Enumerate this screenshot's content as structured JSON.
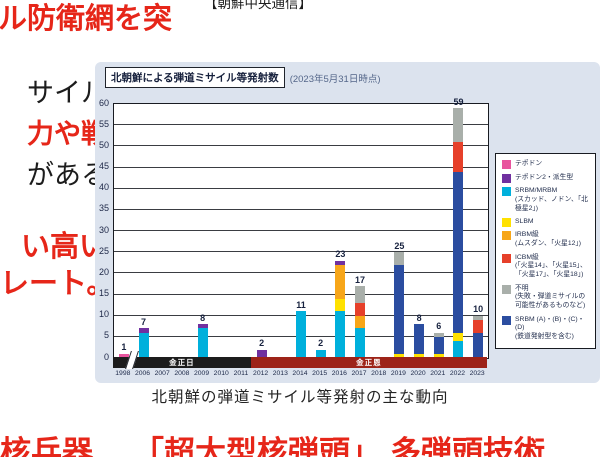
{
  "colors": {
    "headline_red": "#e62619",
    "panel_bg": "#dce3ee",
    "era_kim_jong_il": "#1c1c1c",
    "era_kim_jong_un": "#9d2318"
  },
  "page": {
    "headline_top": "ル防衛網を突",
    "credit": "【朝鮮中央通信】",
    "left_fragments": [
      "サイル",
      "力や戦",
      "がある",
      "い高い",
      "レート。"
    ],
    "left_fragment_colors": [
      "black",
      "red",
      "black",
      "red",
      "red"
    ],
    "caption": "北朝鮮の弾道ミサイル等発射の主な動向",
    "headline_bottom": [
      "核兵器",
      "「超大型核弾頭」",
      "多弾頭技術"
    ]
  },
  "chart_data": {
    "type": "bar",
    "stacked": true,
    "title": "北朝鮮による弾道ミサイル等発射数",
    "subtitle": "(2023年5月31日時点)",
    "ylim": [
      0,
      60
    ],
    "ytick_step": 5,
    "grid": true,
    "x_break_after": "1998",
    "categories": [
      "1998",
      "2006",
      "2007",
      "2008",
      "2009",
      "2010",
      "2011",
      "2012",
      "2013",
      "2014",
      "2015",
      "2016",
      "2017",
      "2018",
      "2019",
      "2020",
      "2021",
      "2022",
      "2023"
    ],
    "series": [
      {
        "name": "テポドン",
        "color": "#e8549e",
        "values": [
          1,
          0,
          0,
          0,
          0,
          0,
          0,
          0,
          0,
          0,
          0,
          0,
          0,
          0,
          0,
          0,
          0,
          0,
          0
        ]
      },
      {
        "name": "SRBM/MRBM(スカッド、ノドン、「北極星2」)",
        "color": "#00b0dc",
        "values": [
          0,
          6,
          0,
          0,
          7,
          0,
          0,
          0,
          0,
          11,
          2,
          11,
          7,
          0,
          0,
          0,
          0,
          4,
          0
        ]
      },
      {
        "name": "SLBM",
        "color": "#ffe100",
        "values": [
          0,
          0,
          0,
          0,
          0,
          0,
          0,
          0,
          0,
          0,
          0,
          3,
          0,
          0,
          1,
          1,
          1,
          2,
          0
        ]
      },
      {
        "name": "IRBM級(ムスダン、「火星12」)",
        "color": "#f7a619",
        "values": [
          0,
          0,
          0,
          0,
          0,
          0,
          0,
          0,
          0,
          0,
          0,
          8,
          3,
          0,
          0,
          0,
          0,
          0,
          0
        ]
      },
      {
        "name": "テポドン2・派生型",
        "color": "#7030a0",
        "values": [
          0,
          1,
          0,
          0,
          1,
          0,
          0,
          2,
          0,
          0,
          0,
          1,
          0,
          0,
          0,
          0,
          0,
          0,
          0
        ]
      },
      {
        "name": "SRBM(A)・(B)・(C)・(D)(鉄道発射型を含む)",
        "color": "#2b4da0",
        "values": [
          0,
          0,
          0,
          0,
          0,
          0,
          0,
          0,
          0,
          0,
          0,
          0,
          0,
          0,
          21,
          7,
          4,
          38,
          6
        ]
      },
      {
        "name": "ICBM級(「火星14」、「火星15」、「火星17」、「火星18」)",
        "color": "#e6402a",
        "values": [
          0,
          0,
          0,
          0,
          0,
          0,
          0,
          0,
          0,
          0,
          0,
          0,
          3,
          0,
          0,
          0,
          0,
          7,
          3
        ]
      },
      {
        "name": "不明(失敗・弾道ミサイルの可能性があるものなど)",
        "color": "#a9afaa",
        "values": [
          0,
          0,
          0,
          0,
          0,
          0,
          0,
          0,
          0,
          0,
          0,
          0,
          4,
          0,
          3,
          0,
          1,
          8,
          1
        ]
      }
    ],
    "totals": {
      "1998": 1,
      "2006": 7,
      "2009": 8,
      "2012": 2,
      "2014": 11,
      "2015": 2,
      "2016": 23,
      "2017": 17,
      "2019": 25,
      "2020": 8,
      "2021": 6,
      "2022": 59,
      "2023": 10
    },
    "eras": [
      {
        "label": "金正日",
        "from": "1998",
        "to": "2011",
        "color": "#1c1c1c"
      },
      {
        "label": "金正恩",
        "from": "2012",
        "to": "2023",
        "color": "#9d2318"
      }
    ]
  },
  "legend": {
    "items": [
      {
        "label": "テポドン",
        "color": "#e8549e"
      },
      {
        "label": "テポドン2・派生型",
        "color": "#7030a0"
      },
      {
        "label": "SRBM/MRBM\n(スカッド、ノドン、「北極星2」)",
        "color": "#00b0dc"
      },
      {
        "label": "SLBM",
        "color": "#ffe100"
      },
      {
        "label": "IRBM級\n(ムスダン、「火星12」)",
        "color": "#f7a619"
      },
      {
        "label": "ICBM級\n(「火星14」、「火星15」、\n「火星17」、「火星18」)",
        "color": "#e6402a"
      },
      {
        "label": "不明\n(失敗・弾道ミサイルの\n可能性があるものなど)",
        "color": "#a9afaa"
      },
      {
        "label": "SRBM (A)・(B)・(C)・(D)\n(鉄道発射型を含む)",
        "color": "#2b4da0"
      }
    ]
  }
}
